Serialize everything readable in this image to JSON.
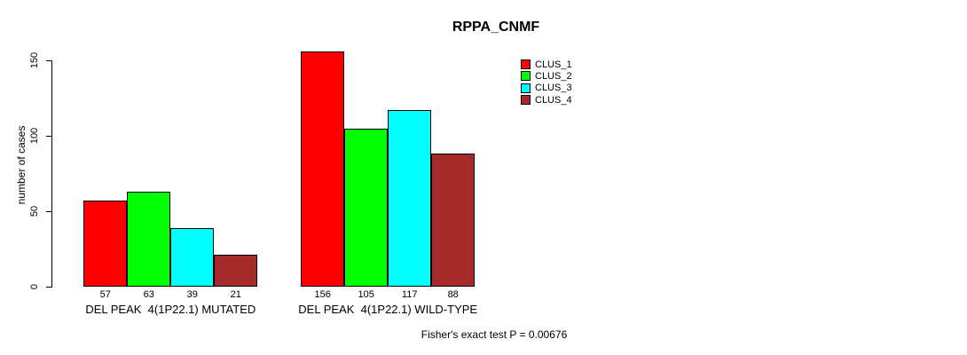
{
  "chart_data": {
    "type": "bar",
    "title": "RPPA_CNMF",
    "ylabel": "number of cases",
    "xlabel": "",
    "ylim": [
      0,
      150
    ],
    "yticks": [
      0,
      50,
      100,
      150
    ],
    "grid": false,
    "legend_position": "top-right",
    "categories": [
      "DEL PEAK  4(1P22.1) MUTATED",
      "DEL PEAK  4(1P22.1) WILD-TYPE"
    ],
    "series": [
      {
        "name": "CLUS_1",
        "color": "#FF0000",
        "values": [
          57,
          156
        ]
      },
      {
        "name": "CLUS_2",
        "color": "#00FF00",
        "values": [
          63,
          105
        ]
      },
      {
        "name": "CLUS_3",
        "color": "#00FFFF",
        "values": [
          39,
          117
        ]
      },
      {
        "name": "CLUS_4",
        "color": "#A52A2A",
        "values": [
          21,
          88
        ]
      }
    ],
    "bar_value_labels": [
      [
        57,
        63,
        39,
        21
      ],
      [
        156,
        105,
        117,
        88
      ]
    ],
    "annotation": "Fisher's exact test P = 0.00676"
  }
}
